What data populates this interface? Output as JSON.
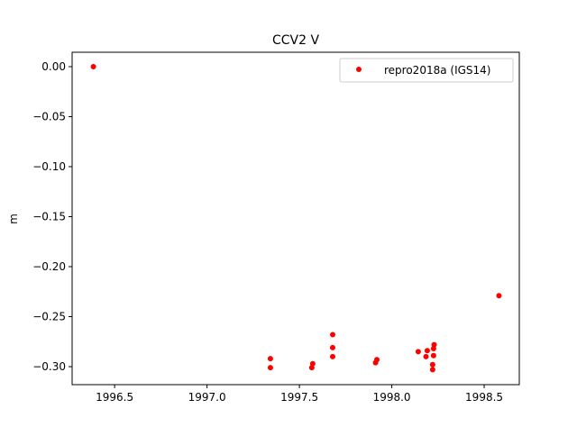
{
  "chart_data": {
    "type": "scatter",
    "title": "CCV2 V",
    "xlabel": "",
    "ylabel": "m",
    "xlim": [
      1996.27,
      1998.69
    ],
    "ylim": [
      -0.318,
      0.0144
    ],
    "xticks": [
      1996.5,
      1997.0,
      1997.5,
      1998.0,
      1998.5
    ],
    "xtick_labels": [
      "1996.5",
      "1997.0",
      "1997.5",
      "1998.0",
      "1998.5"
    ],
    "yticks": [
      0.0,
      -0.05,
      -0.1,
      -0.15,
      -0.2,
      -0.25,
      -0.3
    ],
    "ytick_labels": [
      "0.00",
      "−0.05",
      "−0.10",
      "−0.15",
      "−0.20",
      "−0.25",
      "−0.30"
    ],
    "grid": false,
    "legend_position": "top-right",
    "series": [
      {
        "name": "repro2018a (IGS14)",
        "color": "#ff0000",
        "x": [
          1996.385,
          1997.343,
          1997.343,
          1997.572,
          1997.567,
          1997.68,
          1997.68,
          1997.68,
          1997.919,
          1997.912,
          1998.143,
          1998.192,
          1998.185,
          1998.229,
          1998.226,
          1998.226,
          1998.221,
          1998.221,
          1998.58
        ],
        "y": [
          0.0,
          -0.292,
          -0.301,
          -0.297,
          -0.301,
          -0.268,
          -0.281,
          -0.29,
          -0.293,
          -0.296,
          -0.285,
          -0.284,
          -0.29,
          -0.278,
          -0.282,
          -0.289,
          -0.298,
          -0.303,
          -0.229
        ]
      }
    ]
  }
}
